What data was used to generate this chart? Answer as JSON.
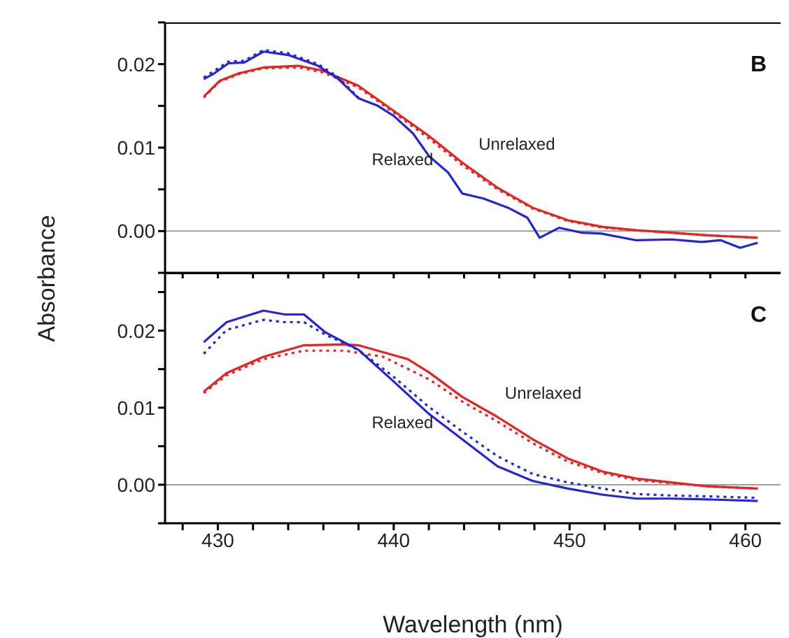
{
  "chart_data": [
    {
      "type": "line",
      "ylabel": "Absorbance",
      "xlim": [
        427,
        462
      ],
      "ylim": [
        -0.005,
        0.025
      ],
      "xticks": [
        {
          "value": 428,
          "label": null
        },
        {
          "value": 430,
          "label": null
        },
        {
          "value": 432,
          "label": null
        },
        {
          "value": 434,
          "label": null
        },
        {
          "value": 436,
          "label": null
        },
        {
          "value": 438,
          "label": null
        },
        {
          "value": 440,
          "label": null
        },
        {
          "value": 442,
          "label": null
        },
        {
          "value": 444,
          "label": null
        },
        {
          "value": 446,
          "label": null
        },
        {
          "value": 448,
          "label": null
        },
        {
          "value": 450,
          "label": null
        },
        {
          "value": 452,
          "label": null
        },
        {
          "value": 454,
          "label": null
        },
        {
          "value": 456,
          "label": null
        },
        {
          "value": 458,
          "label": null
        },
        {
          "value": 460,
          "label": null
        }
      ],
      "yticks": [
        {
          "value": -0.005,
          "label": null
        },
        {
          "value": 0,
          "label": "0.00"
        },
        {
          "value": 0.005,
          "label": null
        },
        {
          "value": 0.01,
          "label": "0.01"
        },
        {
          "value": 0.015,
          "label": null
        },
        {
          "value": 0.02,
          "label": "0.02"
        },
        {
          "value": 0.025,
          "label": null
        }
      ],
      "tick_labels": "y",
      "marker": "none",
      "grid": false,
      "ref_lines": [
        {
          "axis": "y",
          "value": 0,
          "color": "#a0a0a0"
        }
      ],
      "annotations": [
        "B",
        "Relaxed",
        "Unrelaxed"
      ],
      "series": [
        {
          "color": "#e52421",
          "line_style": "solid",
          "x": [
            429.2,
            430.1,
            431.2,
            432.6,
            434.6,
            436,
            438,
            440,
            442,
            443.9,
            445.9,
            447.9,
            449.9,
            451.9,
            453.8,
            455.8,
            457.8,
            460.7
          ],
          "values": [
            0.0161,
            0.018,
            0.0189,
            0.0196,
            0.0198,
            0.0192,
            0.0174,
            0.0144,
            0.0114,
            0.0082,
            0.0052,
            0.0028,
            0.0013,
            0.0005,
            0.0001,
            -0.0002,
            -0.0005,
            -0.0008
          ]
        },
        {
          "color": "#e52421",
          "line_style": "dotted",
          "x": [
            429.2,
            430.1,
            431.2,
            432.6,
            434.6,
            436,
            438,
            440,
            442,
            443.9,
            445.9,
            447.9,
            449.9,
            451.9,
            453.8,
            455.8,
            457.8,
            460.7
          ],
          "values": [
            0.016,
            0.0179,
            0.0188,
            0.0195,
            0.0196,
            0.019,
            0.0172,
            0.0142,
            0.0111,
            0.0079,
            0.005,
            0.0027,
            0.0012,
            0.0004,
            0.0001,
            -0.0002,
            -0.0005,
            -0.0008
          ]
        },
        {
          "color": "#2424d9",
          "line_style": "solid",
          "x": [
            429.2,
            429.8,
            430.6,
            431.5,
            432.6,
            434,
            435.7,
            436.8,
            438,
            439.1,
            440,
            441.1,
            442,
            443.1,
            443.9,
            445.1,
            446.5,
            447.6,
            448.3,
            449.4,
            450.7,
            451.8,
            453.8,
            455.8,
            457.5,
            458.6,
            459.7,
            460.7
          ],
          "values": [
            0.0182,
            0.0189,
            0.0201,
            0.0202,
            0.0215,
            0.0211,
            0.0198,
            0.0183,
            0.0159,
            0.015,
            0.0138,
            0.0117,
            0.009,
            0.007,
            0.0045,
            0.0039,
            0.0028,
            0.0016,
            -0.0008,
            0.0004,
            -0.0002,
            -0.0003,
            -0.0011,
            -0.001,
            -0.0013,
            -0.0011,
            -0.002,
            -0.0014
          ]
        },
        {
          "color": "#2424d9",
          "line_style": "dotted",
          "x": [
            429.2,
            429.8,
            430.6,
            431.5,
            432.6,
            434,
            435.7,
            436.8,
            438
          ],
          "values": [
            0.0184,
            0.0192,
            0.0203,
            0.0204,
            0.0217,
            0.0213,
            0.02,
            0.0185,
            0.016
          ]
        }
      ]
    },
    {
      "type": "line",
      "xlabel": "Wavelength (nm)",
      "xlim": [
        427,
        462
      ],
      "ylim": [
        -0.005,
        0.0275
      ],
      "xticks": [
        {
          "value": 428,
          "label": null
        },
        430,
        {
          "value": 432,
          "label": null
        },
        {
          "value": 434,
          "label": null
        },
        {
          "value": 436,
          "label": null
        },
        {
          "value": 438,
          "label": null
        },
        440,
        {
          "value": 442,
          "label": null
        },
        {
          "value": 444,
          "label": null
        },
        {
          "value": 446,
          "label": null
        },
        {
          "value": 448,
          "label": null
        },
        450,
        {
          "value": 452,
          "label": null
        },
        {
          "value": 454,
          "label": null
        },
        {
          "value": 456,
          "label": null
        },
        {
          "value": 458,
          "label": null
        },
        460
      ],
      "yticks": [
        {
          "value": -0.005,
          "label": null
        },
        {
          "value": 0,
          "label": "0.00"
        },
        {
          "value": 0.005,
          "label": null
        },
        {
          "value": 0.01,
          "label": "0.01"
        },
        {
          "value": 0.015,
          "label": null
        },
        {
          "value": 0.02,
          "label": "0.02"
        },
        {
          "value": 0.025,
          "label": null
        }
      ],
      "marker": "none",
      "grid": false,
      "ref_lines": [
        {
          "axis": "y",
          "value": 0,
          "color": "#a0a0a0"
        }
      ],
      "annotations": [
        "C",
        "Relaxed",
        "Unrelaxed"
      ],
      "series": [
        {
          "color": "#e52421",
          "line_style": "solid",
          "x": [
            429.2,
            430.5,
            432.6,
            434.9,
            437.2,
            438,
            439.4,
            440.8,
            442,
            443.9,
            445.9,
            447.9,
            449.9,
            451.9,
            453.8,
            455.8,
            457.8,
            460.7
          ],
          "values": [
            0.0121,
            0.0145,
            0.0166,
            0.0181,
            0.0182,
            0.0181,
            0.0172,
            0.0163,
            0.0146,
            0.0114,
            0.0088,
            0.0059,
            0.0034,
            0.0017,
            0.0008,
            0.0003,
            -0.0002,
            -0.0005
          ]
        },
        {
          "color": "#e52421",
          "line_style": "dotted",
          "x": [
            429.2,
            430.5,
            432.6,
            434.9,
            437.2,
            439.4,
            442,
            443.9,
            445.9,
            447.9,
            449.9,
            451.9,
            453.8,
            457.8,
            460.7
          ],
          "values": [
            0.0119,
            0.0142,
            0.0163,
            0.0174,
            0.0174,
            0.0166,
            0.0137,
            0.0108,
            0.0082,
            0.0054,
            0.003,
            0.0015,
            0.0006,
            -0.0002,
            -0.0005
          ]
        },
        {
          "color": "#2424d9",
          "line_style": "solid",
          "x": [
            429.2,
            430.5,
            432.6,
            433.8,
            434.9,
            436.1,
            438,
            440,
            442,
            443.9,
            445.9,
            447.9,
            449.9,
            451.9,
            453.8,
            455.8,
            457.8,
            460.7
          ],
          "values": [
            0.0185,
            0.0211,
            0.0226,
            0.0221,
            0.0221,
            0.0198,
            0.0175,
            0.0134,
            0.0092,
            0.0059,
            0.0024,
            0.0005,
            -0.0005,
            -0.0013,
            -0.0018,
            -0.0018,
            -0.0019,
            -0.0021
          ]
        },
        {
          "color": "#2424d9",
          "line_style": "dotted",
          "x": [
            429.2,
            430.5,
            432.6,
            433.8,
            434.9,
            436.1,
            438,
            440,
            442,
            443.9,
            445.9,
            447.9,
            449.9,
            451.9,
            453.8,
            455.8,
            457.8,
            460.7
          ],
          "values": [
            0.017,
            0.0201,
            0.0214,
            0.0211,
            0.0211,
            0.0195,
            0.0175,
            0.014,
            0.0101,
            0.0069,
            0.0037,
            0.0014,
            0.0003,
            -0.0005,
            -0.0012,
            -0.0014,
            -0.0015,
            -0.0017
          ]
        }
      ]
    }
  ]
}
